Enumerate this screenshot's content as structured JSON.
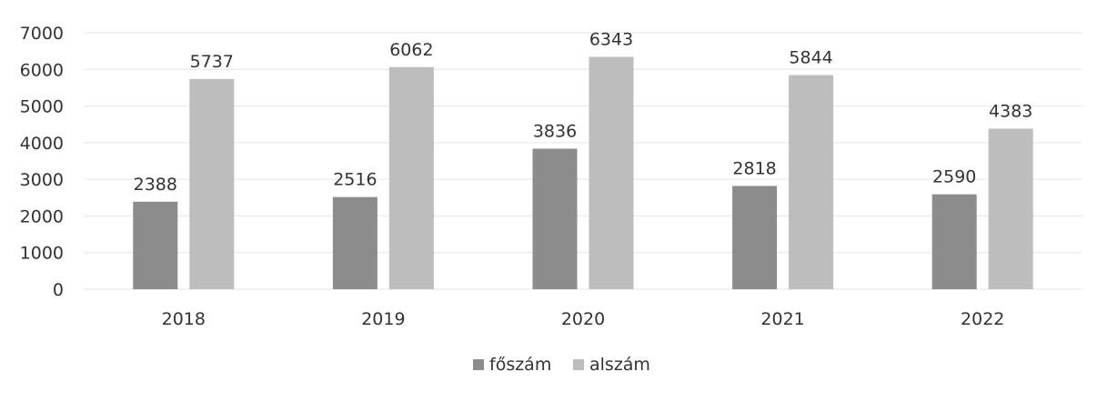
{
  "chart_data": {
    "type": "bar",
    "categories": [
      "2018",
      "2019",
      "2020",
      "2021",
      "2022"
    ],
    "series": [
      {
        "name": "főszám",
        "values": [
          2388,
          2516,
          3836,
          2818,
          2590
        ],
        "color": "#8c8c8c"
      },
      {
        "name": "alszám",
        "values": [
          5737,
          6062,
          6343,
          5844,
          4383
        ],
        "color": "#bdbdbd"
      }
    ],
    "ylim": [
      0,
      7000
    ],
    "yticks": [
      "0",
      "1000",
      "2000",
      "3000",
      "4000",
      "5000",
      "6000",
      "7000"
    ],
    "grid": true,
    "legend_position": "bottom",
    "gridline_color": "#e6e6e6"
  }
}
